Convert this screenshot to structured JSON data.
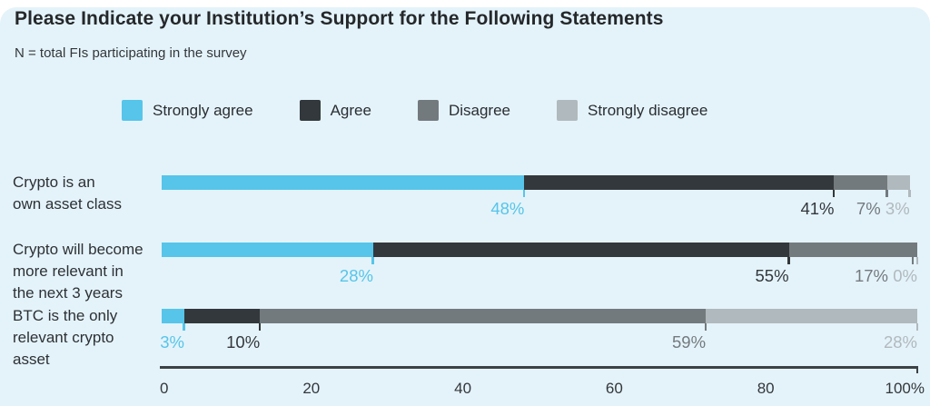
{
  "page": {
    "card_background": "#e4f3fa",
    "outer_background": "#ffffff"
  },
  "header": {
    "title": "Please Indicate your Institution’s Support for the Following Statements",
    "subtitle": "N = total FIs participating in the survey"
  },
  "legend": [
    {
      "label": "Strongly agree",
      "color": "#56c5e9"
    },
    {
      "label": "Agree",
      "color": "#33383c"
    },
    {
      "label": "Disagree",
      "color": "#737a7e"
    },
    {
      "label": "Strongly disagree",
      "color": "#b0b9bd"
    }
  ],
  "chart_data": {
    "type": "bar",
    "orientation": "horizontal",
    "stacked": true,
    "unit": "%",
    "title": "Please Indicate your Institution’s Support for the Following Statements",
    "subtitle": "N = total FIs participating in the survey",
    "categories": [
      "Crypto is an\nown asset class",
      "Crypto will become\nmore relevant in\nthe next 3 years",
      "BTC is the only\nrelevant crypto\nasset"
    ],
    "series": [
      {
        "name": "Strongly agree",
        "color": "#56c5e9",
        "values": [
          48,
          28,
          3
        ]
      },
      {
        "name": "Agree",
        "color": "#33383c",
        "values": [
          41,
          55,
          10
        ]
      },
      {
        "name": "Disagree",
        "color": "#737a7e",
        "values": [
          7,
          17,
          59
        ]
      },
      {
        "name": "Strongly disagree",
        "color": "#b0b9bd",
        "values": [
          3,
          0,
          28
        ]
      }
    ],
    "data_labels": [
      [
        "48%",
        "41%",
        "7%",
        "3%"
      ],
      [
        "28%",
        "55%",
        "17%",
        "0%"
      ],
      [
        "3%",
        "10%",
        "59%",
        "28%"
      ]
    ],
    "xlim": [
      0,
      100
    ],
    "x_ticks": [
      "0",
      "20",
      "40",
      "60",
      "80",
      "100%"
    ],
    "legend_position": "top",
    "grid": false,
    "axis_color": "#3c4145"
  }
}
